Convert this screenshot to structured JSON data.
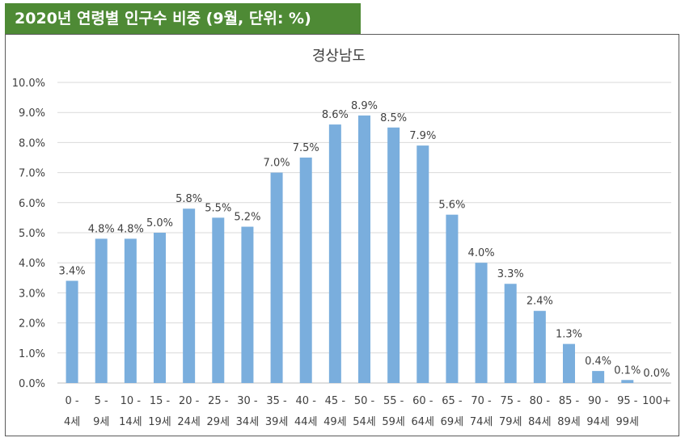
{
  "header": {
    "title": "2020년 연령별 인구수 비중 (9월, 단위: %)"
  },
  "chart_data": {
    "type": "bar",
    "title": "경상남도",
    "xlabel": "",
    "ylabel": "",
    "ylim": [
      0,
      10
    ],
    "y_ticks": [
      "0.0%",
      "1.0%",
      "2.0%",
      "3.0%",
      "4.0%",
      "5.0%",
      "6.0%",
      "7.0%",
      "8.0%",
      "9.0%",
      "10.0%"
    ],
    "grid": true,
    "legend": "none",
    "bar_color": "#7aaedd",
    "categories": [
      {
        "line1": "0 -",
        "line2": "4세"
      },
      {
        "line1": "5 -",
        "line2": "9세"
      },
      {
        "line1": "10 -",
        "line2": "14세"
      },
      {
        "line1": "15 -",
        "line2": "19세"
      },
      {
        "line1": "20 -",
        "line2": "24세"
      },
      {
        "line1": "25 -",
        "line2": "29세"
      },
      {
        "line1": "30 -",
        "line2": "34세"
      },
      {
        "line1": "35 -",
        "line2": "39세"
      },
      {
        "line1": "40 -",
        "line2": "44세"
      },
      {
        "line1": "45 -",
        "line2": "49세"
      },
      {
        "line1": "50 -",
        "line2": "54세"
      },
      {
        "line1": "55 -",
        "line2": "59세"
      },
      {
        "line1": "60 -",
        "line2": "64세"
      },
      {
        "line1": "65 -",
        "line2": "69세"
      },
      {
        "line1": "70 -",
        "line2": "74세"
      },
      {
        "line1": "75 -",
        "line2": "79세"
      },
      {
        "line1": "80 -",
        "line2": "84세"
      },
      {
        "line1": "85 -",
        "line2": "89세"
      },
      {
        "line1": "90 -",
        "line2": "94세"
      },
      {
        "line1": "95 -",
        "line2": "99세"
      },
      {
        "line1": "100+",
        "line2": ""
      }
    ],
    "values": [
      3.4,
      4.8,
      4.8,
      5.0,
      5.8,
      5.5,
      5.2,
      7.0,
      7.5,
      8.6,
      8.9,
      8.5,
      7.9,
      5.6,
      4.0,
      3.3,
      2.4,
      1.3,
      0.4,
      0.1,
      0.0
    ],
    "data_labels": [
      "3.4%",
      "4.8%",
      "4.8%",
      "5.0%",
      "5.8%",
      "5.5%",
      "5.2%",
      "7.0%",
      "7.5%",
      "8.6%",
      "8.9%",
      "8.5%",
      "7.9%",
      "5.6%",
      "4.0%",
      "3.3%",
      "2.4%",
      "1.3%",
      "0.4%",
      "0.1%",
      "0.0%"
    ]
  }
}
